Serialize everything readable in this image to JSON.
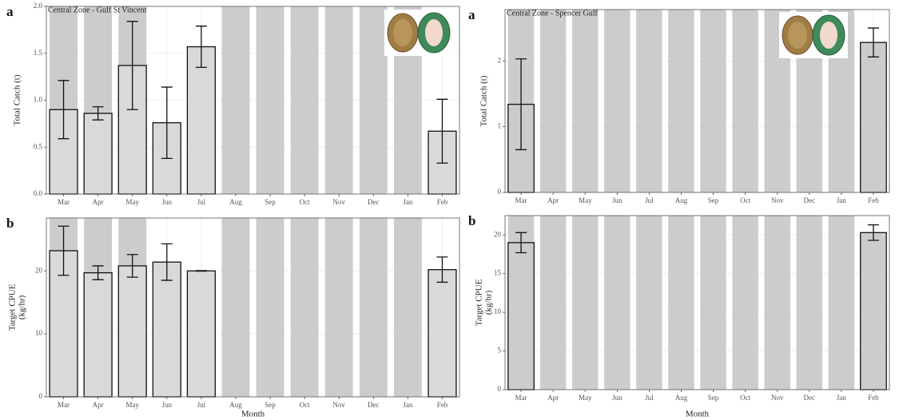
{
  "chart_data": [
    {
      "type": "bar",
      "panel_label": "a",
      "title": "Central Zone - Gulf St Vincent",
      "ylabel": [
        "Total Catch (t)"
      ],
      "categories": [
        "Mar",
        "Apr",
        "May",
        "Jun",
        "Jul",
        "Aug",
        "Sep",
        "Oct",
        "Nov",
        "Dec",
        "Jan",
        "Feb"
      ],
      "values": [
        0.9,
        0.86,
        1.37,
        0.76,
        1.57,
        null,
        null,
        null,
        null,
        null,
        null,
        0.67
      ],
      "errors": [
        0.31,
        0.07,
        0.47,
        0.38,
        0.22,
        null,
        null,
        null,
        null,
        null,
        null,
        0.34
      ],
      "shaded": [
        true,
        true,
        true,
        false,
        false,
        true,
        true,
        true,
        true,
        true,
        true,
        false
      ],
      "color": "#d9d9d9",
      "shade_color": "#cccccc",
      "ylim": [
        0,
        2
      ],
      "yticks": [
        {
          "value": 0,
          "label": "0.0"
        },
        {
          "value": 0.5,
          "label": "0.5"
        },
        {
          "value": 1,
          "label": "1.0"
        },
        {
          "value": 1.5,
          "label": "1.5"
        },
        {
          "value": 2,
          "label": "2.0"
        }
      ],
      "grid": true
    },
    {
      "type": "bar",
      "panel_label": "b",
      "ylabel": [
        "Target CPUE",
        "(kg/hr)"
      ],
      "xlabel": "Month",
      "categories": [
        "Mar",
        "Apr",
        "May",
        "Jun",
        "Jul",
        "Aug",
        "Sep",
        "Oct",
        "Nov",
        "Dec",
        "Jan",
        "Feb"
      ],
      "values": [
        23.2,
        19.7,
        20.8,
        21.4,
        20.0,
        null,
        null,
        null,
        null,
        null,
        null,
        20.2
      ],
      "errors": [
        3.9,
        1.1,
        1.8,
        2.9,
        0.05,
        null,
        null,
        null,
        null,
        null,
        null,
        2.0
      ],
      "shaded": [
        true,
        true,
        true,
        false,
        false,
        true,
        true,
        true,
        true,
        true,
        true,
        false
      ],
      "color": "#d9d9d9",
      "shade_color": "#cccccc",
      "ylim": [
        0,
        28.4
      ],
      "yticks": [
        0,
        10,
        20
      ],
      "grid": true
    },
    {
      "type": "bar",
      "panel_label": "a",
      "title": "Central Zone - Spencer Gulf",
      "ylabel": [
        "Total Catch (t)"
      ],
      "categories": [
        "Mar",
        "Apr",
        "May",
        "Jun",
        "Jul",
        "Aug",
        "Sep",
        "Oct",
        "Nov",
        "Dec",
        "Jan",
        "Feb"
      ],
      "values": [
        1.34,
        null,
        null,
        null,
        null,
        null,
        null,
        null,
        null,
        null,
        null,
        2.28
      ],
      "errors": [
        0.69,
        null,
        null,
        null,
        null,
        null,
        null,
        null,
        null,
        null,
        null,
        0.22
      ],
      "shaded": [
        true,
        true,
        true,
        true,
        true,
        true,
        true,
        true,
        true,
        true,
        true,
        false
      ],
      "color": "#cccccc",
      "shade_color": "#cccccc",
      "ylim": [
        0,
        2.78
      ],
      "yticks": [
        0,
        1,
        2
      ],
      "grid": true
    },
    {
      "type": "bar",
      "panel_label": "b",
      "ylabel": [
        "Target CPUE",
        "(kg/hr)"
      ],
      "xlabel": "Month",
      "categories": [
        "Mar",
        "Apr",
        "May",
        "Jun",
        "Jul",
        "Aug",
        "Sep",
        "Oct",
        "Nov",
        "Dec",
        "Jan",
        "Feb"
      ],
      "values": [
        19.0,
        null,
        null,
        null,
        null,
        null,
        null,
        null,
        null,
        null,
        null,
        20.3
      ],
      "errors": [
        1.3,
        null,
        null,
        null,
        null,
        null,
        null,
        null,
        null,
        null,
        null,
        1.0
      ],
      "shaded": [
        true,
        true,
        true,
        true,
        true,
        true,
        true,
        true,
        true,
        true,
        true,
        false
      ],
      "color": "#cccccc",
      "shade_color": "#cccccc",
      "ylim": [
        0,
        22.5
      ],
      "yticks": [
        0,
        5,
        10,
        15,
        20
      ],
      "grid": true
    }
  ]
}
